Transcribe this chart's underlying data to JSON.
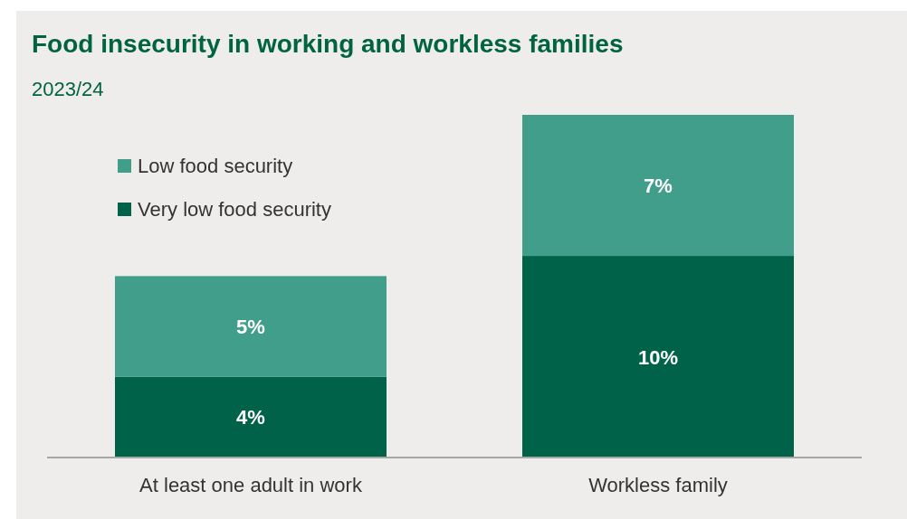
{
  "chart_data": {
    "type": "bar",
    "title": "Food insecurity in working and workless families",
    "subtitle": "2023/24",
    "categories": [
      "At least one adult in work",
      "Workless family"
    ],
    "stacked": true,
    "legend": "top left",
    "series": [
      {
        "name": "Very low food security",
        "color": "#006349",
        "values": [
          4,
          10
        ],
        "value_labels": [
          "4%",
          "10%"
        ]
      },
      {
        "name": "Low food security",
        "color": "#409e8a",
        "values": [
          5,
          7
        ],
        "value_labels": [
          "5%",
          "7%"
        ]
      }
    ]
  }
}
